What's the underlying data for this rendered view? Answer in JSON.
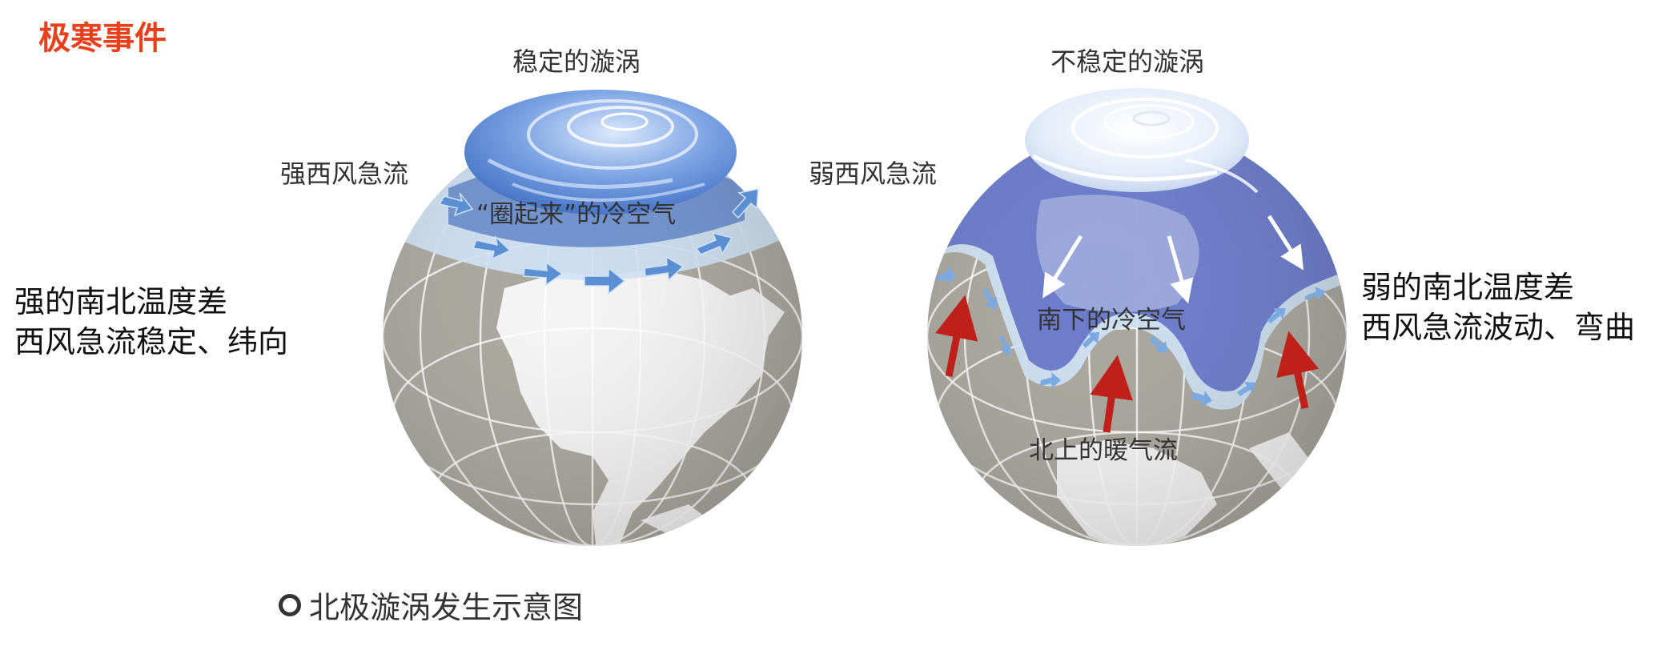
{
  "title": "极寒事件",
  "left_globe": {
    "label_top": "稳定的漩涡",
    "label_jet": "强西风急流",
    "label_inner": "“圈起来”的冷空气"
  },
  "right_globe": {
    "label_top": "不稳定的漩涡",
    "label_jet": "弱西风急流",
    "label_cold": "南下的冷空气",
    "label_warm": "北上的暖气流"
  },
  "left_side": {
    "line1": "强的南北温度差",
    "line2": "西风急流稳定、纬向"
  },
  "right_side": {
    "line1": "弱的南北温度差",
    "line2": "西风急流波动、弯曲"
  },
  "caption": "北极漩涡发生示意图",
  "colors": {
    "title": "#e8401c",
    "land": "#f4f4f4",
    "ocean": "#a9a69c",
    "jet": "#cfe2f5",
    "vortex": "#4e7fd0",
    "warm_arrow": "#c0201a"
  }
}
